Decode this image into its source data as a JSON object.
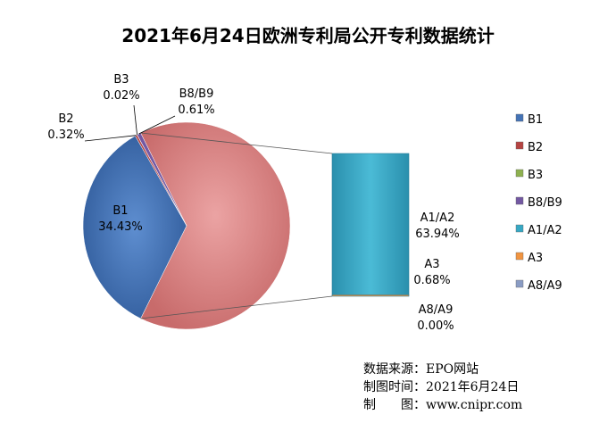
{
  "chart_data": {
    "type": "pie",
    "title": "2021年6月24日欧洲专利局公开专利数据统计",
    "series": [
      {
        "name": "B1",
        "value": 34.43,
        "label": "34.43%",
        "color": "#4473B6"
      },
      {
        "name": "B2",
        "value": 0.32,
        "label": "0.32%",
        "color": "#B54442"
      },
      {
        "name": "B3",
        "value": 0.02,
        "label": "0.02%",
        "color": "#8EB14F"
      },
      {
        "name": "B8/B9",
        "value": 0.61,
        "label": "0.61%",
        "color": "#7358A2"
      },
      {
        "name": "A1/A2",
        "value": 63.94,
        "label": "63.94%",
        "color": "#37A8C4"
      },
      {
        "name": "A3",
        "value": 0.68,
        "label": "0.68%",
        "color": "#F19440"
      },
      {
        "name": "A8/A9",
        "value": 0.0,
        "label": "0.00%",
        "color": "#8A9CC4"
      }
    ],
    "pie_of_pie": {
      "main_color": "#E08A8A",
      "bar_members": [
        "A1/A2",
        "A3",
        "A8/A9"
      ]
    },
    "legend_position": "right"
  },
  "source": {
    "line1": "数据来源：EPO网站",
    "line2": "制图时间：2021年6月24日",
    "line3": "制　　图：www.cnipr.com"
  }
}
